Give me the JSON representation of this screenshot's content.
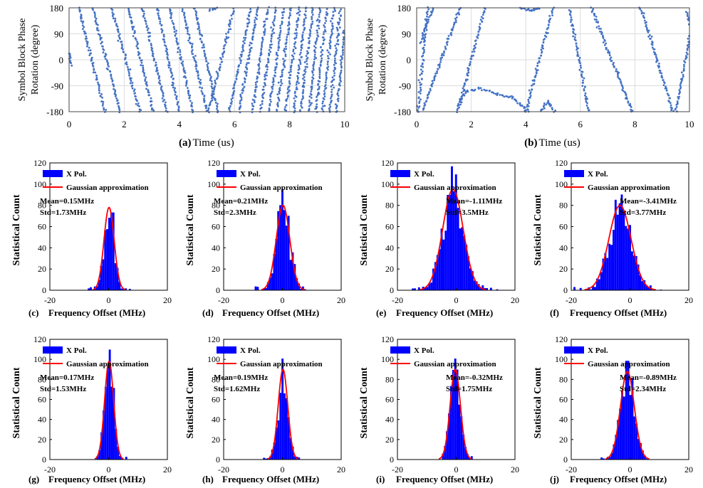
{
  "chart_data": [
    {
      "id": "a",
      "type": "scatter",
      "caption_letter": "(a)",
      "caption_text": "Time (us)",
      "ylabel_lines": [
        "Symbol Block Phase",
        "Rotation (degree)"
      ],
      "xlim": [
        0,
        10
      ],
      "ylim": [
        -180,
        180
      ],
      "xticks": [
        "0",
        "2",
        "4",
        "6",
        "8",
        "10"
      ],
      "yticks": [
        "180",
        "90",
        "0",
        "-90",
        "-180"
      ],
      "color": "#4472c4",
      "series": [
        {
          "name": "s1",
          "x": [
            0.0,
            0.1
          ],
          "y": [
            30,
            -20
          ]
        },
        {
          "name": "s2",
          "x": [
            0.35,
            1.3
          ],
          "y": [
            180,
            -180
          ]
        },
        {
          "name": "s3",
          "x": [
            0.85,
            1.85
          ],
          "y": [
            180,
            -180
          ]
        },
        {
          "name": "s4",
          "x": [
            1.55,
            2.55
          ],
          "y": [
            180,
            -180
          ]
        },
        {
          "name": "s5",
          "x": [
            2.15,
            3.05
          ],
          "y": [
            180,
            -180
          ]
        },
        {
          "name": "s6",
          "x": [
            2.65,
            3.55
          ],
          "y": [
            180,
            -180
          ]
        },
        {
          "name": "s7",
          "x": [
            3.2,
            4.0
          ],
          "y": [
            180,
            -180
          ]
        },
        {
          "name": "s8",
          "x": [
            3.65,
            4.5
          ],
          "y": [
            180,
            -180
          ]
        },
        {
          "name": "s9",
          "x": [
            4.1,
            5.0
          ],
          "y": [
            180,
            -180
          ]
        },
        {
          "name": "s10",
          "x": [
            4.55,
            5.4
          ],
          "y": [
            180,
            -180
          ]
        },
        {
          "name": "s11",
          "x": [
            5.1,
            5.4
          ],
          "y": [
            170,
            180
          ]
        },
        {
          "name": "s12",
          "x": [
            5.05,
            6.0
          ],
          "y": [
            -180,
            180
          ]
        },
        {
          "name": "s13",
          "x": [
            5.8,
            6.6
          ],
          "y": [
            -180,
            180
          ]
        },
        {
          "name": "s14",
          "x": [
            6.15,
            6.85
          ],
          "y": [
            -180,
            180
          ]
        },
        {
          "name": "s15",
          "x": [
            6.65,
            7.2
          ],
          "y": [
            -180,
            180
          ]
        },
        {
          "name": "s16",
          "x": [
            6.95,
            7.5
          ],
          "y": [
            -180,
            180
          ]
        },
        {
          "name": "s17",
          "x": [
            7.25,
            7.8
          ],
          "y": [
            -180,
            180
          ]
        },
        {
          "name": "s18",
          "x": [
            7.55,
            8.05
          ],
          "y": [
            -180,
            180
          ]
        },
        {
          "name": "s19",
          "x": [
            7.85,
            8.35
          ],
          "y": [
            -180,
            180
          ]
        },
        {
          "name": "s20",
          "x": [
            8.15,
            8.6
          ],
          "y": [
            -180,
            180
          ]
        },
        {
          "name": "s21",
          "x": [
            8.4,
            8.85
          ],
          "y": [
            -180,
            180
          ]
        },
        {
          "name": "s22",
          "x": [
            8.7,
            9.1
          ],
          "y": [
            -180,
            180
          ]
        },
        {
          "name": "s23",
          "x": [
            8.95,
            9.35
          ],
          "y": [
            -180,
            180
          ]
        },
        {
          "name": "s24",
          "x": [
            9.2,
            9.6
          ],
          "y": [
            -180,
            180
          ]
        },
        {
          "name": "s25",
          "x": [
            9.45,
            9.85
          ],
          "y": [
            -180,
            180
          ]
        },
        {
          "name": "s26",
          "x": [
            9.7,
            10.0
          ],
          "y": [
            -180,
            100
          ]
        }
      ]
    },
    {
      "id": "b",
      "type": "scatter",
      "caption_letter": "(b)",
      "caption_text": "Time (us)",
      "ylabel_lines": [
        "Symbol Block Phase",
        "Rotation (degree)"
      ],
      "xlim": [
        0,
        10
      ],
      "ylim": [
        -180,
        180
      ],
      "xticks": [
        "0",
        "2",
        "4",
        "6",
        "8",
        "10"
      ],
      "yticks": [
        "180",
        "90",
        "0",
        "-90",
        "-180"
      ],
      "color": "#4472c4",
      "series": [
        {
          "name": "s1",
          "x": [
            0.05,
            0.4
          ],
          "y": [
            -180,
            180
          ]
        },
        {
          "name": "s2",
          "x": [
            0.15,
            0.6
          ],
          "y": [
            60,
            180
          ]
        },
        {
          "name": "s3",
          "x": [
            0.2,
            1.6
          ],
          "y": [
            -180,
            180
          ]
        },
        {
          "name": "s4",
          "x": [
            1.5,
            1.8,
            2.3,
            3.0,
            3.5,
            4.1
          ],
          "y": [
            -160,
            -110,
            -100,
            -120,
            -130,
            -180
          ]
        },
        {
          "name": "s5",
          "x": [
            1.5,
            2.5
          ],
          "y": [
            -180,
            180
          ]
        },
        {
          "name": "s6",
          "x": [
            3.8,
            4.2
          ],
          "y": [
            180,
            170
          ]
        },
        {
          "name": "s7",
          "x": [
            4.2,
            4.5
          ],
          "y": [
            170,
            180
          ]
        },
        {
          "name": "s8",
          "x": [
            4.55,
            4.8,
            5.05
          ],
          "y": [
            -180,
            -145,
            -180
          ]
        },
        {
          "name": "s9",
          "x": [
            4.0,
            5.0
          ],
          "y": [
            -180,
            180
          ]
        },
        {
          "name": "s10",
          "x": [
            5.6,
            6.3
          ],
          "y": [
            180,
            -180
          ]
        },
        {
          "name": "s11",
          "x": [
            6.4,
            7.9
          ],
          "y": [
            180,
            -180
          ]
        },
        {
          "name": "s12",
          "x": [
            8.2,
            9.4
          ],
          "y": [
            180,
            -180
          ]
        },
        {
          "name": "s13",
          "x": [
            9.5,
            10.0
          ],
          "y": [
            -180,
            80
          ]
        },
        {
          "name": "s14",
          "x": [
            9.9,
            10.0
          ],
          "y": [
            170,
            120
          ]
        }
      ]
    },
    {
      "id": "c",
      "type": "bar",
      "caption_letter": "(c)",
      "caption_text": "Frequency Offset (MHz)",
      "ylabel": "Statistical Count",
      "xlim": [
        -20,
        20
      ],
      "ylim": [
        0,
        120
      ],
      "xticks": [
        "-20",
        "0",
        "20"
      ],
      "yticks": [
        "120",
        "100",
        "80",
        "60",
        "40",
        "20",
        "0"
      ],
      "legend": [
        "X Pol.",
        "Gaussian approximation"
      ],
      "mean": 0.15,
      "std": 1.73,
      "peak": 78,
      "mean_label": "Mean=0.15MHz",
      "std_label": "Std=1.73MHz"
    },
    {
      "id": "d",
      "type": "bar",
      "caption_letter": "(d)",
      "caption_text": "Frequency Offset (MHz)",
      "ylabel": "Statistical Count",
      "xlim": [
        -20,
        20
      ],
      "ylim": [
        0,
        120
      ],
      "xticks": [
        "-20",
        "0",
        "20"
      ],
      "yticks": [
        "120",
        "100",
        "80",
        "60",
        "40",
        "20",
        "0"
      ],
      "legend": [
        "X Pol.",
        "Gaussian approximation"
      ],
      "mean": 0.21,
      "std": 2.3,
      "peak": 80,
      "mean_label": "Mean=0.21MHz",
      "std_label": "Std=2.3MHz"
    },
    {
      "id": "e",
      "type": "bar",
      "caption_letter": "(e)",
      "caption_text": "Frequency Offset (MHz)",
      "ylabel": "Statistical Count",
      "xlim": [
        -20,
        20
      ],
      "ylim": [
        0,
        120
      ],
      "xticks": [
        "-20",
        "0",
        "20"
      ],
      "yticks": [
        "120",
        "100",
        "80",
        "60",
        "40",
        "20",
        "0"
      ],
      "legend": [
        "X Pol.",
        "Gaussian approximation"
      ],
      "mean": -1.11,
      "std": 3.5,
      "peak": 95,
      "mean_label": "Mean=-1.11MHz",
      "std_label": "Std=3.5MHz"
    },
    {
      "id": "f",
      "type": "bar",
      "caption_letter": "(f)",
      "caption_text": "Frequency Offset (MHz)",
      "ylabel": "Statistical Count",
      "xlim": [
        -20,
        20
      ],
      "ylim": [
        0,
        120
      ],
      "xticks": [
        "-20",
        "0",
        "20"
      ],
      "yticks": [
        "120",
        "100",
        "80",
        "60",
        "40",
        "20",
        "0"
      ],
      "legend": [
        "X Pol.",
        "Gaussian approximation"
      ],
      "mean": -3.41,
      "std": 3.77,
      "peak": 80,
      "mean_label": "Mean=-3.41MHz",
      "std_label": "Std=3.77MHz"
    },
    {
      "id": "g",
      "type": "bar",
      "caption_letter": "(g)",
      "caption_text": "Frequency Offset (MHz)",
      "ylabel": "Statistical Count",
      "xlim": [
        -20,
        20
      ],
      "ylim": [
        0,
        120
      ],
      "xticks": [
        "-20",
        "0",
        "20"
      ],
      "yticks": [
        "120",
        "100",
        "80",
        "60",
        "40",
        "20",
        "0"
      ],
      "legend": [
        "X Pol.",
        "Gaussian approximation"
      ],
      "mean": 0.17,
      "std": 1.53,
      "peak": 98,
      "mean_label": "Mean=0.17MHz",
      "std_label": "Std=1.53MHz"
    },
    {
      "id": "h",
      "type": "bar",
      "caption_letter": "(h)",
      "caption_text": "Frequency Offset (MHz)",
      "ylabel": "Statistical Count",
      "xlim": [
        -20,
        20
      ],
      "ylim": [
        0,
        120
      ],
      "xticks": [
        "-20",
        "0",
        "20"
      ],
      "yticks": [
        "120",
        "100",
        "80",
        "60",
        "40",
        "20",
        "0"
      ],
      "legend": [
        "X Pol.",
        "Gaussian approximation"
      ],
      "mean": 0.19,
      "std": 1.62,
      "peak": 90,
      "mean_label": "Mean=0.19MHz",
      "std_label": "Std=1.62MHz"
    },
    {
      "id": "i",
      "type": "bar",
      "caption_letter": "(i)",
      "caption_text": "Frequency Offset (MHz)",
      "ylabel": "Statistical Count",
      "xlim": [
        -20,
        20
      ],
      "ylim": [
        0,
        120
      ],
      "xticks": [
        "-20",
        "0",
        "20"
      ],
      "yticks": [
        "120",
        "100",
        "80",
        "60",
        "40",
        "20",
        "0"
      ],
      "legend": [
        "X Pol.",
        "Gaussian approximation"
      ],
      "mean": -0.32,
      "std": 1.75,
      "peak": 90,
      "mean_label": "Mean=-0.32MHz",
      "std_label": "Std=1.75MHz"
    },
    {
      "id": "j",
      "type": "bar",
      "caption_letter": "(j)",
      "caption_text": "Frequency Offset (MHz)",
      "ylabel": "Statistical Count",
      "xlim": [
        -20,
        20
      ],
      "ylim": [
        0,
        120
      ],
      "xticks": [
        "-20",
        "0",
        "20"
      ],
      "yticks": [
        "120",
        "100",
        "80",
        "60",
        "40",
        "20",
        "0"
      ],
      "legend": [
        "X Pol.",
        "Gaussian approximation"
      ],
      "mean": -0.89,
      "std": 2.34,
      "peak": 88,
      "mean_label": "Mean=-0.89MHz",
      "std_label": "Std=2.34MHz"
    }
  ],
  "colors": {
    "scatter": "#4472c4",
    "bars": "#0000ff",
    "fit": "#ff0000",
    "grid": "#dcdcdc",
    "axis": "#000000"
  }
}
